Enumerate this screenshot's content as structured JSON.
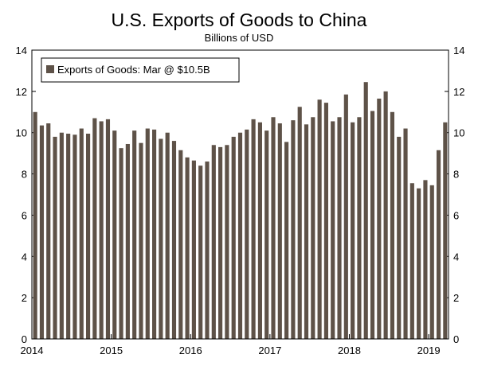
{
  "chart_data": {
    "type": "bar",
    "title": "U.S. Exports of Goods to China",
    "subtitle": "Billions of USD",
    "xlabel": "",
    "ylabel": "",
    "ylim": [
      0,
      14
    ],
    "y_ticks": [
      "0",
      "2",
      "4",
      "6",
      "8",
      "10",
      "12",
      "14"
    ],
    "x_ticks": [
      "2014",
      "2015",
      "2016",
      "2017",
      "2018",
      "2019"
    ],
    "grid": false,
    "legend_position": "top-left",
    "bar_color": "#5e5248",
    "categories": [
      "2014-01",
      "2014-02",
      "2014-03",
      "2014-04",
      "2014-05",
      "2014-06",
      "2014-07",
      "2014-08",
      "2014-09",
      "2014-10",
      "2014-11",
      "2014-12",
      "2015-01",
      "2015-02",
      "2015-03",
      "2015-04",
      "2015-05",
      "2015-06",
      "2015-07",
      "2015-08",
      "2015-09",
      "2015-10",
      "2015-11",
      "2015-12",
      "2016-01",
      "2016-02",
      "2016-03",
      "2016-04",
      "2016-05",
      "2016-06",
      "2016-07",
      "2016-08",
      "2016-09",
      "2016-10",
      "2016-11",
      "2016-12",
      "2017-01",
      "2017-02",
      "2017-03",
      "2017-04",
      "2017-05",
      "2017-06",
      "2017-07",
      "2017-08",
      "2017-09",
      "2017-10",
      "2017-11",
      "2017-12",
      "2018-01",
      "2018-02",
      "2018-03",
      "2018-04",
      "2018-05",
      "2018-06",
      "2018-07",
      "2018-08",
      "2018-09",
      "2018-10",
      "2018-11",
      "2018-12",
      "2019-01",
      "2019-02",
      "2019-03"
    ],
    "series": [
      {
        "name": "Exports of Goods: Mar @ $10.5B",
        "values": [
          11.0,
          10.35,
          10.45,
          9.8,
          10.0,
          9.95,
          9.9,
          10.2,
          9.95,
          10.7,
          10.55,
          10.65,
          10.1,
          9.25,
          9.45,
          10.1,
          9.5,
          10.2,
          10.15,
          9.7,
          10.0,
          9.6,
          9.15,
          8.8,
          8.65,
          8.4,
          8.6,
          9.4,
          9.3,
          9.4,
          9.8,
          10.0,
          10.15,
          10.65,
          10.5,
          10.1,
          10.75,
          10.45,
          9.55,
          10.6,
          11.25,
          10.4,
          10.75,
          11.6,
          11.45,
          10.55,
          10.75,
          11.85,
          10.5,
          10.75,
          12.45,
          11.05,
          11.65,
          12.0,
          11.0,
          9.8,
          10.2,
          7.55,
          7.3,
          7.7,
          7.45,
          9.15,
          10.5
        ]
      }
    ]
  }
}
